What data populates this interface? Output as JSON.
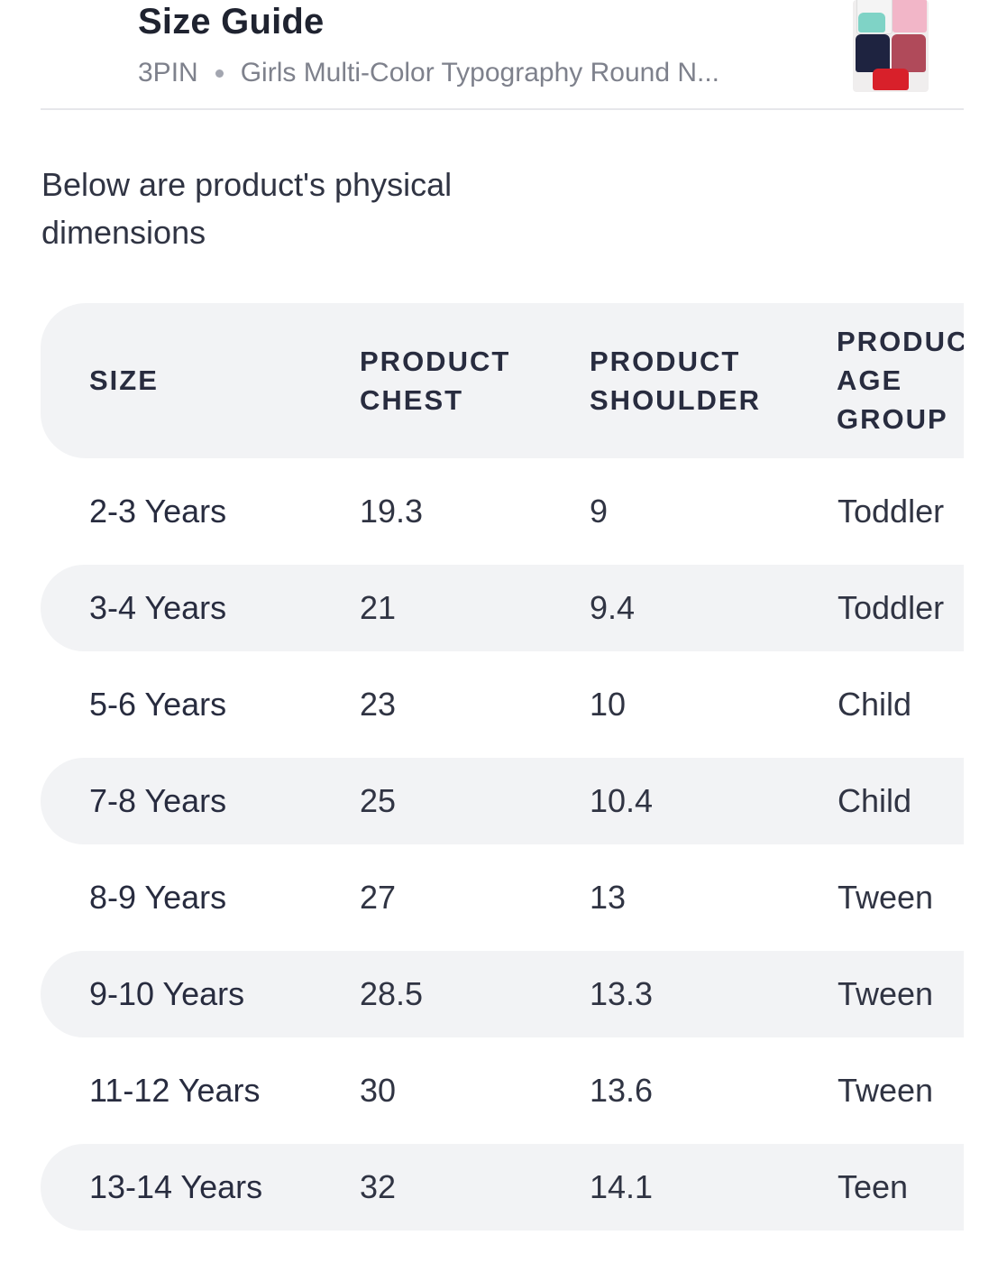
{
  "header": {
    "title": "Size Guide",
    "brand": "3PIN",
    "product_name": "Girls Multi-Color Typography Round N...",
    "thumbnail_icon": "product-thumbnail-tshirts"
  },
  "intro_text": "Below are product's physical dimensions",
  "table": {
    "columns": [
      "SIZE",
      "PRODUCT CHEST",
      "PRODUCT SHOULDER",
      "PRODUC AGE GROUP"
    ],
    "rows": [
      {
        "size": "2-3 Years",
        "chest": "19.3",
        "shoulder": "9",
        "age_group": "Toddler"
      },
      {
        "size": "3-4 Years",
        "chest": "21",
        "shoulder": "9.4",
        "age_group": "Toddler"
      },
      {
        "size": "5-6 Years",
        "chest": "23",
        "shoulder": "10",
        "age_group": "Child"
      },
      {
        "size": "7-8 Years",
        "chest": "25",
        "shoulder": "10.4",
        "age_group": "Child"
      },
      {
        "size": "8-9 Years",
        "chest": "27",
        "shoulder": "13",
        "age_group": "Tween"
      },
      {
        "size": "9-10 Years",
        "chest": "28.5",
        "shoulder": "13.3",
        "age_group": "Tween"
      },
      {
        "size": "11-12 Years",
        "chest": "30",
        "shoulder": "13.6",
        "age_group": "Tween"
      },
      {
        "size": "13-14 Years",
        "chest": "32",
        "shoulder": "14.1",
        "age_group": "Teen"
      }
    ]
  },
  "colors": {
    "text_primary": "#282c3f",
    "text_secondary": "#7e818c",
    "row_shade": "#f2f3f5",
    "divider": "#e6e7eb"
  }
}
